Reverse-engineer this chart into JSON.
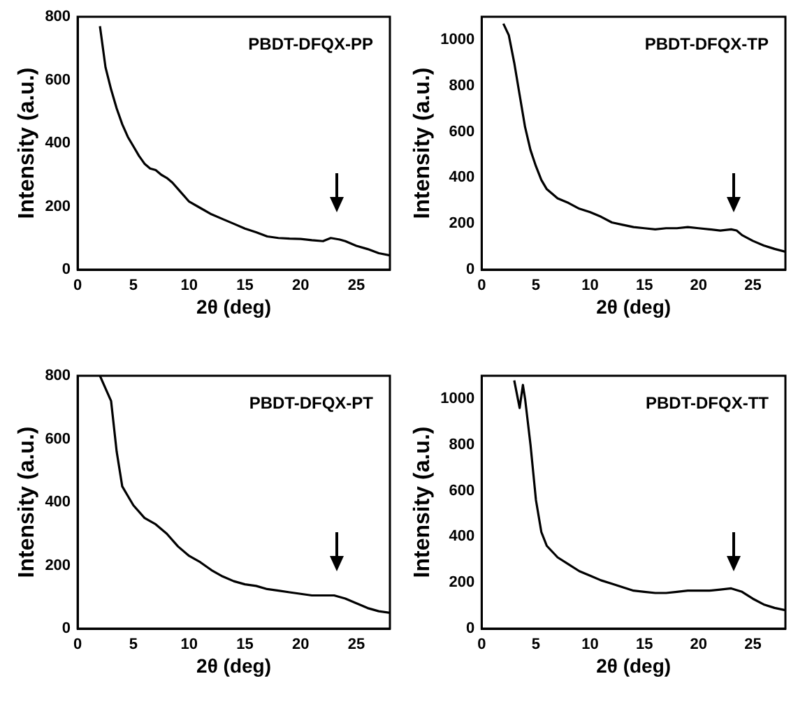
{
  "chart_data": [
    {
      "type": "line",
      "title": "PBDT-DFQX-PP",
      "xlabel": "2θ (deg)",
      "ylabel": "Intensity (a.u.)",
      "xlim": [
        0,
        28
      ],
      "xticks": [
        0,
        5,
        10,
        15,
        20,
        25
      ],
      "ylim": [
        0,
        800
      ],
      "yticks": [
        0,
        200,
        400,
        600,
        800
      ],
      "series": [
        {
          "color": "#000000",
          "x": [
            2,
            2.5,
            3,
            3.5,
            4,
            4.5,
            5,
            5.5,
            6,
            6.5,
            7,
            7.5,
            8,
            8.5,
            9,
            10,
            11,
            12,
            13,
            14,
            15,
            16,
            17,
            18,
            19,
            20,
            21,
            22,
            22.7,
            23.5,
            24,
            25,
            26,
            27,
            28
          ],
          "values": [
            770,
            640,
            570,
            510,
            460,
            420,
            390,
            360,
            335,
            320,
            315,
            300,
            290,
            275,
            255,
            215,
            195,
            175,
            160,
            145,
            130,
            118,
            105,
            100,
            98,
            97,
            93,
            90,
            100,
            95,
            90,
            75,
            65,
            52,
            45
          ]
        }
      ]
    },
    {
      "type": "line",
      "title": "PBDT-DFQX-TP",
      "xlabel": "2θ (deg)",
      "ylabel": "Intensity (a.u.)",
      "xlim": [
        0,
        28
      ],
      "xticks": [
        0,
        5,
        10,
        15,
        20,
        25
      ],
      "ylim": [
        0,
        1100
      ],
      "yticks": [
        0,
        200,
        400,
        600,
        800,
        1000
      ],
      "series": [
        {
          "color": "#000000",
          "x": [
            2,
            2.5,
            3,
            3.5,
            4,
            4.5,
            5,
            5.5,
            6,
            7,
            8,
            9,
            10,
            11,
            12,
            13,
            14,
            15,
            16,
            17,
            18,
            19,
            20,
            21,
            22,
            23,
            23.5,
            24,
            25,
            26,
            27,
            28
          ],
          "values": [
            1070,
            1020,
            900,
            760,
            620,
            520,
            450,
            390,
            350,
            310,
            290,
            265,
            250,
            230,
            205,
            195,
            185,
            180,
            175,
            180,
            180,
            185,
            180,
            175,
            170,
            175,
            170,
            150,
            125,
            105,
            90,
            78
          ]
        }
      ]
    },
    {
      "type": "line",
      "title": "PBDT-DFQX-PT",
      "xlabel": "2θ (deg)",
      "ylabel": "Intensity (a.u.)",
      "xlim": [
        0,
        28
      ],
      "xticks": [
        0,
        5,
        10,
        15,
        20,
        25
      ],
      "ylim": [
        0,
        800
      ],
      "yticks": [
        0,
        200,
        400,
        600,
        800
      ],
      "series": [
        {
          "color": "#000000",
          "x": [
            2,
            2.5,
            3,
            3.5,
            4,
            4.5,
            5,
            6,
            7,
            8,
            9,
            10,
            11,
            12,
            13,
            14,
            15,
            16,
            17,
            18,
            19,
            20,
            21,
            22,
            23,
            24,
            25,
            26,
            27,
            28
          ],
          "values": [
            800,
            760,
            720,
            560,
            450,
            420,
            390,
            350,
            330,
            300,
            260,
            230,
            210,
            185,
            165,
            150,
            140,
            135,
            125,
            120,
            115,
            110,
            105,
            105,
            105,
            95,
            80,
            65,
            55,
            50
          ]
        }
      ]
    },
    {
      "type": "line",
      "title": "PBDT-DFQX-TT",
      "xlabel": "2θ (deg)",
      "ylabel": "Intensity (a.u.)",
      "xlim": [
        0,
        28
      ],
      "xticks": [
        0,
        5,
        10,
        15,
        20,
        25
      ],
      "ylim": [
        0,
        1100
      ],
      "yticks": [
        0,
        200,
        400,
        600,
        800,
        1000
      ],
      "series": [
        {
          "color": "#000000",
          "x": [
            3,
            3.5,
            3.8,
            4,
            4.5,
            5,
            5.5,
            6,
            7,
            8,
            9,
            10,
            11,
            12,
            13,
            14,
            15,
            16,
            17,
            18,
            19,
            20,
            21,
            22,
            23,
            24,
            25,
            26,
            27,
            28
          ],
          "values": [
            1080,
            960,
            1060,
            1000,
            800,
            560,
            420,
            360,
            310,
            280,
            250,
            230,
            210,
            195,
            180,
            165,
            160,
            155,
            155,
            160,
            165,
            165,
            165,
            170,
            175,
            160,
            130,
            105,
            90,
            80
          ]
        }
      ]
    }
  ]
}
